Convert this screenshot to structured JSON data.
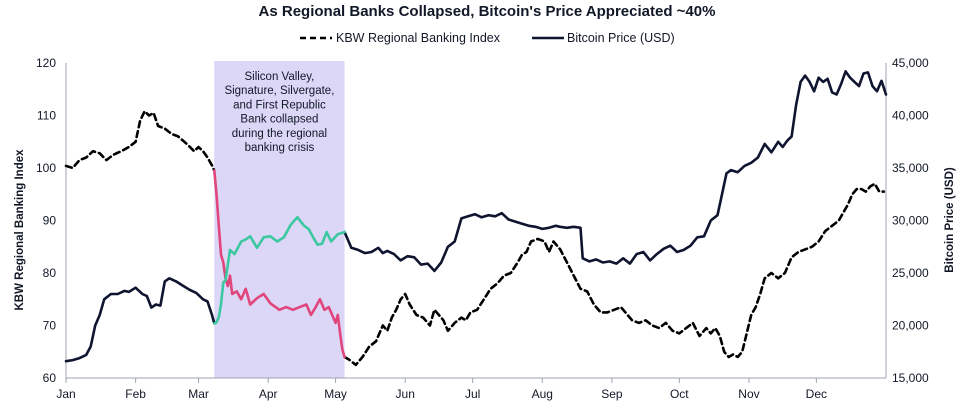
{
  "chart_data": {
    "type": "line",
    "title": "As Regional Banks Collapsed, Bitcoin's Price Appreciated ~40%",
    "xlabel": "",
    "ylabel": "KBW Regional Banking Index",
    "y2label": "Bitcoin Price (USD)",
    "x_range": [
      0,
      365
    ],
    "x_ticks": [
      {
        "label": "Jan",
        "day": 0
      },
      {
        "label": "Feb",
        "day": 31
      },
      {
        "label": "Mar",
        "day": 59
      },
      {
        "label": "Apr",
        "day": 90
      },
      {
        "label": "May",
        "day": 120
      },
      {
        "label": "Jun",
        "day": 151
      },
      {
        "label": "Jul",
        "day": 181
      },
      {
        "label": "Aug",
        "day": 212
      },
      {
        "label": "Sep",
        "day": 243
      },
      {
        "label": "Oct",
        "day": 273
      },
      {
        "label": "Nov",
        "day": 304
      },
      {
        "label": "Dec",
        "day": 334
      }
    ],
    "ylim_left": [
      60,
      120
    ],
    "y_ticks_left": [
      "60",
      "70",
      "80",
      "90",
      "100",
      "110",
      "120"
    ],
    "y_tick_values_left": [
      60,
      70,
      80,
      90,
      100,
      110,
      120
    ],
    "ylim_right": [
      15000,
      45000
    ],
    "y_ticks_right": [
      "15,000",
      "20,000",
      "25,000",
      "30,000",
      "35,000",
      "40,000",
      "45,000"
    ],
    "y_tick_values_right": [
      15000,
      20000,
      25000,
      30000,
      35000,
      40000,
      45000
    ],
    "legend": [
      {
        "name": "KBW Regional Banking Index",
        "style": "dashed",
        "color": "#000000"
      },
      {
        "name": "Bitcoin Price (USD)",
        "style": "solid",
        "color": "#0f1430"
      }
    ],
    "highlight": {
      "from_day": 66,
      "to_day": 124,
      "color": "#dcd6f7",
      "text": [
        "Silicon Valley,",
        "Signature, Silvergate,",
        "and First Republic",
        "Bank collapsed",
        "during the regional",
        "banking crisis"
      ]
    },
    "series": [
      {
        "name": "KBW Regional Banking Index",
        "axis": "left",
        "style": "dashed",
        "color": "#000000",
        "highlight_color": "#e0457b",
        "points": [
          [
            0,
            100.4
          ],
          [
            3,
            100
          ],
          [
            6,
            101.5
          ],
          [
            9,
            102
          ],
          [
            12,
            103.2
          ],
          [
            15,
            102.8
          ],
          [
            18,
            101.5
          ],
          [
            21,
            102.5
          ],
          [
            25,
            103.3
          ],
          [
            28,
            104
          ],
          [
            31,
            105
          ],
          [
            33,
            109
          ],
          [
            35,
            110.8
          ],
          [
            37,
            110
          ],
          [
            39,
            110.5
          ],
          [
            41,
            108
          ],
          [
            44,
            107.5
          ],
          [
            47,
            106.5
          ],
          [
            50,
            106
          ],
          [
            54,
            104.5
          ],
          [
            57,
            103.2
          ],
          [
            59,
            104
          ],
          [
            61,
            103.2
          ],
          [
            63,
            102
          ],
          [
            65,
            100.5
          ],
          [
            66,
            99.5
          ],
          [
            67,
            95
          ],
          [
            68,
            89
          ],
          [
            69,
            83.5
          ],
          [
            70,
            82
          ],
          [
            71,
            79
          ],
          [
            72,
            77.5
          ],
          [
            73,
            79.5
          ],
          [
            74,
            76
          ],
          [
            76,
            76.5
          ],
          [
            78,
            75
          ],
          [
            80,
            77
          ],
          [
            82,
            74
          ],
          [
            85,
            75.2
          ],
          [
            88,
            76
          ],
          [
            91,
            74.2
          ],
          [
            95,
            73
          ],
          [
            98,
            73.5
          ],
          [
            101,
            73
          ],
          [
            104,
            73.5
          ],
          [
            107,
            74
          ],
          [
            109,
            72
          ],
          [
            111,
            73.4
          ],
          [
            113,
            75
          ],
          [
            115,
            73
          ],
          [
            117,
            73.5
          ],
          [
            119,
            71.5
          ],
          [
            120,
            70.5
          ],
          [
            121,
            72
          ],
          [
            122,
            68.5
          ],
          [
            123,
            65.5
          ],
          [
            124,
            64
          ],
          [
            126,
            63.5
          ],
          [
            129,
            62.5
          ],
          [
            132,
            64
          ],
          [
            135,
            66
          ],
          [
            138,
            67
          ],
          [
            141,
            70
          ],
          [
            143,
            69
          ],
          [
            145,
            71.5
          ],
          [
            147,
            73
          ],
          [
            149,
            75
          ],
          [
            151,
            76
          ],
          [
            153,
            74
          ],
          [
            156,
            72
          ],
          [
            159,
            71.5
          ],
          [
            162,
            70
          ],
          [
            164,
            73
          ],
          [
            166,
            72
          ],
          [
            168,
            71
          ],
          [
            170,
            69
          ],
          [
            173,
            70.5
          ],
          [
            176,
            71.5
          ],
          [
            178,
            71
          ],
          [
            180,
            72.5
          ],
          [
            183,
            73
          ],
          [
            186,
            75
          ],
          [
            189,
            77
          ],
          [
            192,
            78
          ],
          [
            195,
            79.5
          ],
          [
            198,
            80
          ],
          [
            201,
            82
          ],
          [
            203,
            83.5
          ],
          [
            205,
            84
          ],
          [
            207,
            86
          ],
          [
            210,
            86.5
          ],
          [
            213,
            86
          ],
          [
            215,
            84
          ],
          [
            217,
            86
          ],
          [
            220,
            84.5
          ],
          [
            223,
            82
          ],
          [
            226,
            79.5
          ],
          [
            229,
            77
          ],
          [
            232,
            76.5
          ],
          [
            235,
            74
          ],
          [
            238,
            72.5
          ],
          [
            241,
            72.5
          ],
          [
            244,
            73
          ],
          [
            247,
            73.5
          ],
          [
            250,
            72
          ],
          [
            252,
            71
          ],
          [
            255,
            70.5
          ],
          [
            258,
            71
          ],
          [
            261,
            70
          ],
          [
            264,
            69.5
          ],
          [
            267,
            70.5
          ],
          [
            270,
            69
          ],
          [
            273,
            68.5
          ],
          [
            276,
            69.5
          ],
          [
            279,
            70.5
          ],
          [
            282,
            68
          ],
          [
            285,
            69.5
          ],
          [
            287,
            68.5
          ],
          [
            289,
            69.5
          ],
          [
            291,
            68
          ],
          [
            293,
            65
          ],
          [
            295,
            64
          ],
          [
            297,
            64.5
          ],
          [
            299,
            64
          ],
          [
            301,
            65
          ],
          [
            303,
            68.5
          ],
          [
            305,
            72
          ],
          [
            307,
            73.5
          ],
          [
            309,
            76
          ],
          [
            311,
            79
          ],
          [
            314,
            80
          ],
          [
            317,
            79
          ],
          [
            320,
            80
          ],
          [
            323,
            83
          ],
          [
            326,
            84
          ],
          [
            329,
            84.5
          ],
          [
            332,
            85
          ],
          [
            335,
            86
          ],
          [
            338,
            88
          ],
          [
            341,
            89
          ],
          [
            344,
            90
          ],
          [
            346,
            91.5
          ],
          [
            348,
            93
          ],
          [
            350,
            95
          ],
          [
            352,
            96
          ],
          [
            354,
            96
          ],
          [
            356,
            95.5
          ],
          [
            358,
            96.5
          ],
          [
            360,
            97
          ],
          [
            362,
            95.5
          ],
          [
            364,
            95.5
          ]
        ]
      },
      {
        "name": "Bitcoin Price (USD)",
        "axis": "right",
        "style": "solid",
        "color": "#0f1430",
        "highlight_color": "#3cc8a0",
        "points": [
          [
            0,
            16600
          ],
          [
            3,
            16700
          ],
          [
            6,
            16900
          ],
          [
            9,
            17200
          ],
          [
            11,
            18000
          ],
          [
            13,
            20000
          ],
          [
            15,
            21000
          ],
          [
            17,
            22500
          ],
          [
            20,
            23000
          ],
          [
            23,
            23000
          ],
          [
            26,
            23300
          ],
          [
            28,
            23200
          ],
          [
            31,
            23600
          ],
          [
            34,
            23000
          ],
          [
            36,
            22800
          ],
          [
            38,
            21700
          ],
          [
            40,
            22000
          ],
          [
            42,
            21900
          ],
          [
            44,
            24200
          ],
          [
            46,
            24500
          ],
          [
            49,
            24200
          ],
          [
            52,
            23800
          ],
          [
            55,
            23400
          ],
          [
            58,
            23100
          ],
          [
            61,
            22500
          ],
          [
            63,
            22300
          ],
          [
            65,
            21000
          ],
          [
            66,
            20200
          ],
          [
            67,
            20300
          ],
          [
            68,
            20800
          ],
          [
            69,
            22000
          ],
          [
            70,
            24100
          ],
          [
            71,
            24300
          ],
          [
            73,
            27200
          ],
          [
            75,
            26800
          ],
          [
            78,
            28000
          ],
          [
            80,
            28200
          ],
          [
            82,
            28500
          ],
          [
            85,
            27400
          ],
          [
            88,
            28400
          ],
          [
            91,
            28500
          ],
          [
            94,
            28000
          ],
          [
            97,
            28400
          ],
          [
            100,
            29600
          ],
          [
            103,
            30300
          ],
          [
            106,
            29500
          ],
          [
            108,
            29200
          ],
          [
            110,
            28400
          ],
          [
            112,
            27700
          ],
          [
            114,
            27800
          ],
          [
            116,
            28900
          ],
          [
            118,
            28000
          ],
          [
            121,
            28700
          ],
          [
            124,
            28900
          ],
          [
            127,
            27400
          ],
          [
            130,
            27200
          ],
          [
            133,
            26900
          ],
          [
            136,
            27000
          ],
          [
            139,
            27400
          ],
          [
            141,
            26900
          ],
          [
            143,
            27100
          ],
          [
            146,
            26800
          ],
          [
            149,
            26200
          ],
          [
            152,
            26600
          ],
          [
            155,
            26500
          ],
          [
            158,
            25800
          ],
          [
            161,
            25900
          ],
          [
            164,
            25200
          ],
          [
            167,
            26000
          ],
          [
            170,
            27500
          ],
          [
            173,
            28000
          ],
          [
            176,
            30200
          ],
          [
            179,
            30400
          ],
          [
            182,
            30600
          ],
          [
            185,
            30300
          ],
          [
            188,
            30500
          ],
          [
            191,
            30400
          ],
          [
            194,
            30700
          ],
          [
            197,
            30100
          ],
          [
            200,
            29900
          ],
          [
            203,
            29700
          ],
          [
            206,
            29500
          ],
          [
            209,
            29400
          ],
          [
            212,
            29200
          ],
          [
            215,
            29300
          ],
          [
            218,
            29500
          ],
          [
            220,
            29400
          ],
          [
            223,
            29300
          ],
          [
            226,
            29400
          ],
          [
            229,
            29300
          ],
          [
            230,
            26400
          ],
          [
            233,
            26100
          ],
          [
            236,
            26300
          ],
          [
            239,
            26000
          ],
          [
            242,
            26100
          ],
          [
            245,
            25900
          ],
          [
            248,
            26400
          ],
          [
            251,
            25900
          ],
          [
            254,
            26800
          ],
          [
            257,
            27000
          ],
          [
            260,
            26200
          ],
          [
            263,
            26800
          ],
          [
            266,
            27300
          ],
          [
            269,
            27600
          ],
          [
            272,
            27000
          ],
          [
            275,
            27200
          ],
          [
            278,
            27600
          ],
          [
            281,
            28400
          ],
          [
            284,
            28500
          ],
          [
            287,
            30000
          ],
          [
            290,
            30500
          ],
          [
            292,
            32500
          ],
          [
            294,
            34500
          ],
          [
            296,
            34800
          ],
          [
            299,
            34600
          ],
          [
            302,
            35200
          ],
          [
            305,
            35500
          ],
          [
            308,
            36000
          ],
          [
            311,
            37300
          ],
          [
            314,
            36500
          ],
          [
            317,
            37500
          ],
          [
            319,
            37000
          ],
          [
            321,
            37600
          ],
          [
            323,
            38000
          ],
          [
            325,
            41000
          ],
          [
            327,
            43200
          ],
          [
            329,
            43800
          ],
          [
            331,
            43200
          ],
          [
            333,
            42300
          ],
          [
            335,
            43600
          ],
          [
            337,
            43200
          ],
          [
            339,
            43500
          ],
          [
            341,
            42200
          ],
          [
            343,
            42000
          ],
          [
            345,
            43000
          ],
          [
            347,
            44200
          ],
          [
            349,
            43600
          ],
          [
            351,
            43200
          ],
          [
            353,
            42800
          ],
          [
            355,
            44000
          ],
          [
            357,
            44100
          ],
          [
            359,
            42800
          ],
          [
            361,
            42300
          ],
          [
            363,
            43300
          ],
          [
            365,
            42000
          ]
        ]
      }
    ]
  }
}
